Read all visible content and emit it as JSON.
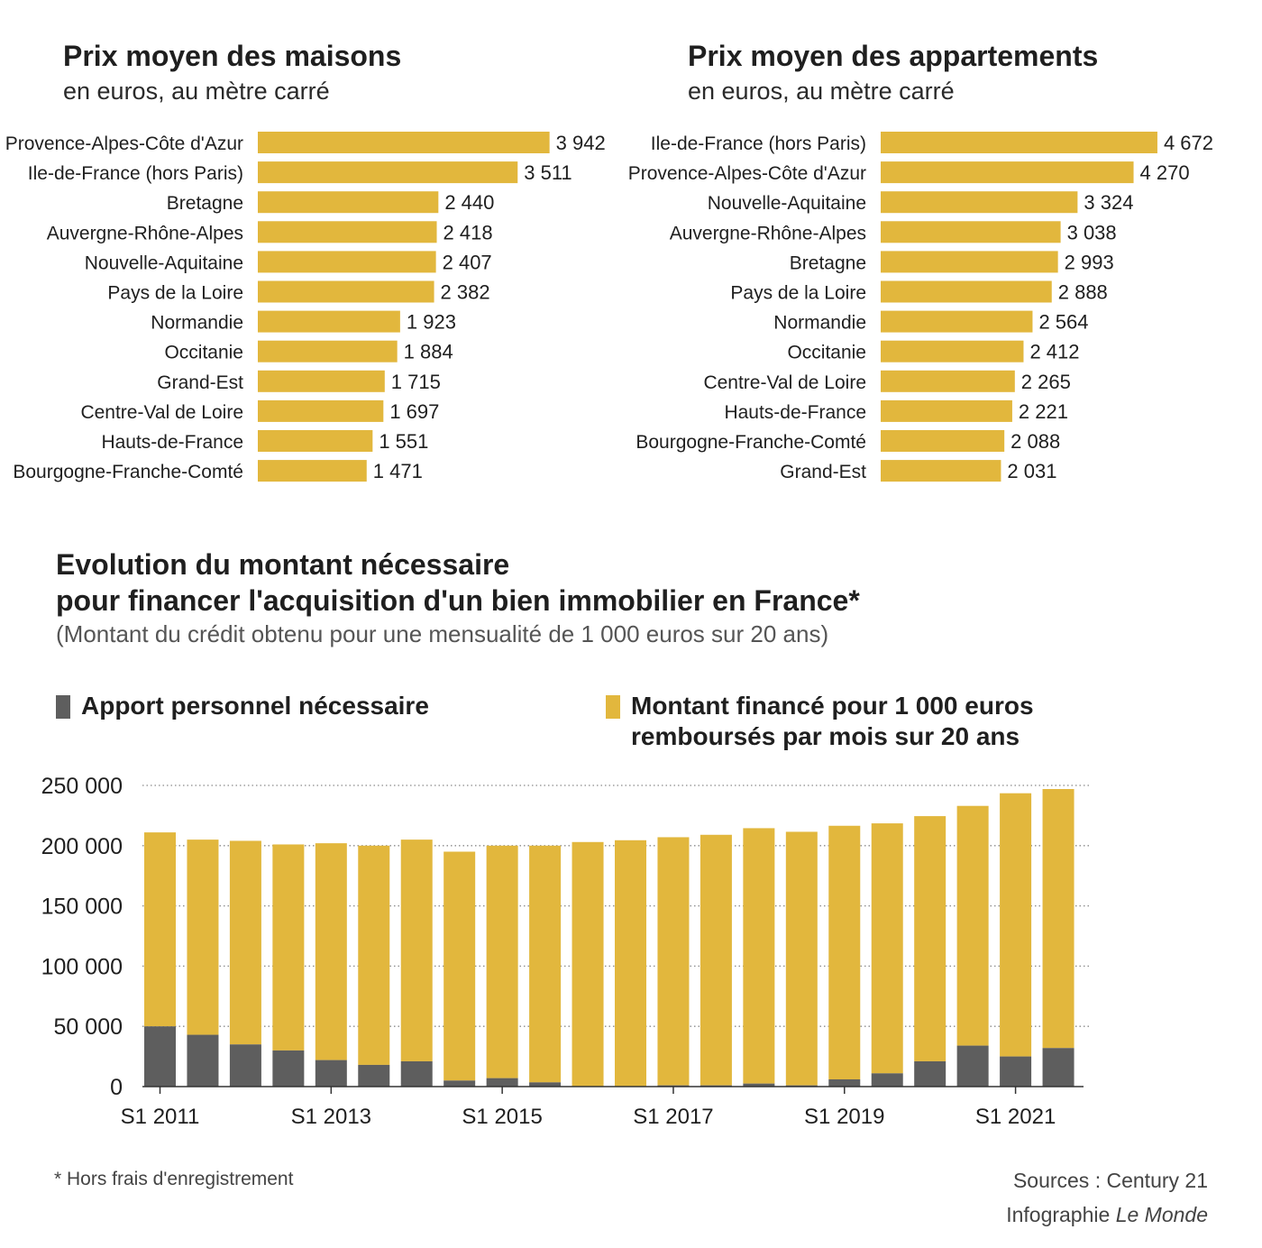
{
  "colors": {
    "yellow": "#e2b73d",
    "gray": "#5e5e5e",
    "text": "#1f1f1f",
    "grid": "#8a8a8a"
  },
  "chart_data": [
    {
      "type": "bar",
      "orientation": "horizontal",
      "title": "Prix moyen des maisons",
      "subtitle": "en euros, au mètre carré",
      "categories": [
        "Provence-Alpes-Côte d'Azur",
        "Ile-de-France (hors Paris)",
        "Bretagne",
        "Auvergne-Rhône-Alpes",
        "Nouvelle-Aquitaine",
        "Pays de la Loire",
        "Normandie",
        "Occitanie",
        "Grand-Est",
        "Centre-Val de Loire",
        "Hauts-de-France",
        "Bourgogne-Franche-Comté"
      ],
      "values": [
        3942,
        3511,
        2440,
        2418,
        2407,
        2382,
        1923,
        1884,
        1715,
        1697,
        1551,
        1471
      ],
      "value_labels": [
        "3 942",
        "3 511",
        "2 440",
        "2 418",
        "2 407",
        "2 382",
        "1 923",
        "1 884",
        "1 715",
        "1 697",
        "1 551",
        "1 471"
      ]
    },
    {
      "type": "bar",
      "orientation": "horizontal",
      "title": "Prix moyen des appartements",
      "subtitle": "en euros, au mètre carré",
      "categories": [
        "Ile-de-France (hors Paris)",
        "Provence-Alpes-Côte d'Azur",
        "Nouvelle-Aquitaine",
        "Auvergne-Rhône-Alpes",
        "Bretagne",
        "Pays de la Loire",
        "Normandie",
        "Occitanie",
        "Centre-Val de Loire",
        "Hauts-de-France",
        "Bourgogne-Franche-Comté",
        "Grand-Est"
      ],
      "values": [
        4672,
        4270,
        3324,
        3038,
        2993,
        2888,
        2564,
        2412,
        2265,
        2221,
        2088,
        2031
      ],
      "value_labels": [
        "4 672",
        "4 270",
        "3 324",
        "3 038",
        "2 993",
        "2 888",
        "2 564",
        "2 412",
        "2 265",
        "2 221",
        "2 088",
        "2 031"
      ]
    },
    {
      "type": "bar",
      "stacked": true,
      "title_line1": "Evolution du montant nécessaire",
      "title_line2": "pour financer l'acquisition d'un bien immobilier en France*",
      "subtitle": "(Montant du crédit obtenu pour une mensualité de 1 000 euros sur 20 ans)",
      "legend": [
        {
          "name": "Apport personnel nécessaire",
          "color": "#5e5e5e"
        },
        {
          "name": "Montant financé pour 1 000 euros remboursés par mois sur 20 ans",
          "line1": "Montant financé pour 1 000 euros",
          "line2": "remboursés par mois sur 20 ans",
          "color": "#e2b73d"
        }
      ],
      "x_tick_labels": [
        "S1 2011",
        "S1 2013",
        "S1 2015",
        "S1 2017",
        "S1 2019",
        "S1 2021"
      ],
      "x_tick_positions": [
        0,
        4,
        8,
        12,
        16,
        20
      ],
      "y_ticks": [
        0,
        50000,
        100000,
        150000,
        200000,
        250000
      ],
      "y_tick_labels": [
        "0",
        "50 000",
        "100 000",
        "150 000",
        "200 000",
        "250 000"
      ],
      "ylim": [
        0,
        250000
      ],
      "grid": "horizontal dotted",
      "series": [
        {
          "name": "Apport personnel nécessaire",
          "values": [
            50000,
            43000,
            35000,
            30000,
            22000,
            18000,
            21000,
            5000,
            7000,
            3500,
            0,
            0,
            1000,
            1000,
            2500,
            1000,
            6000,
            11000,
            21000,
            34000,
            25000,
            32000
          ]
        },
        {
          "name": "Montant financé pour 1 000 euros remboursés par mois sur 20 ans",
          "values": [
            161000,
            162000,
            169000,
            171000,
            180000,
            182000,
            184000,
            190000,
            193000,
            196500,
            203000,
            204500,
            206000,
            208000,
            212000,
            210500,
            210500,
            207500,
            203500,
            199000,
            218500,
            215000
          ]
        }
      ]
    }
  ],
  "footnote": "* Hors frais d'enregistrement",
  "sources": "Sources : Century 21",
  "credit_prefix": "Infographie",
  "credit_name": "Le Monde"
}
